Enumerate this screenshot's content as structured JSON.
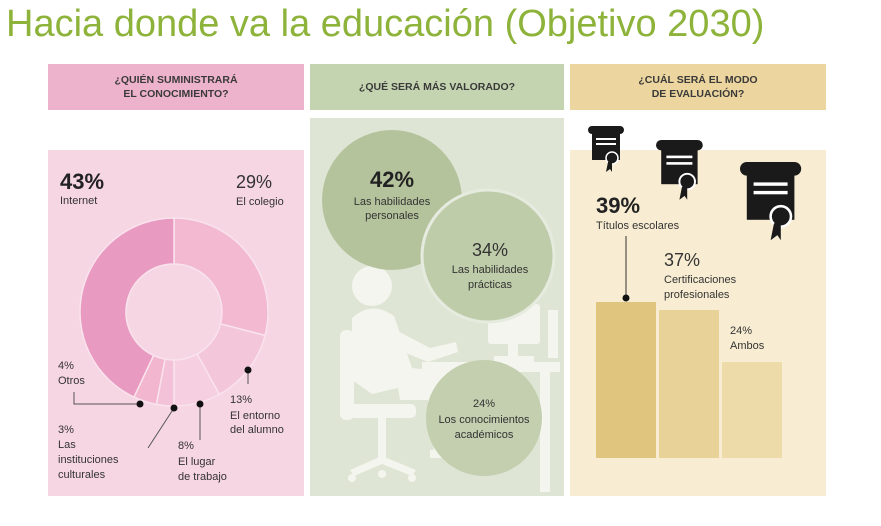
{
  "title": "Hacia donde va la educación (Objetivo 2030)",
  "headers": {
    "h1_line1": "¿QUIÉN SUMINISTRARÁ",
    "h1_line2": "EL CONOCIMIENTO?",
    "h2": "¿QUÉ SERÁ MÁS VALORADO?",
    "h3_line1": "¿CUÁL SERÁ EL MODO",
    "h3_line2": "DE EVALUACIÓN?"
  },
  "colors": {
    "title": "#8db33a",
    "pink_header": "#eeb3cc",
    "green_header": "#c5d4b0",
    "yellow_header": "#ecd59e"
  },
  "chart_data": [
    {
      "type": "pie",
      "title": "¿QUIÉN SUMINISTRARÁ EL CONOCIMIENTO?",
      "slices": [
        {
          "label": "Internet",
          "value": 43,
          "pct": "43%",
          "color": "#e99ac0"
        },
        {
          "label": "El colegio",
          "value": 29,
          "pct": "29%",
          "color": "#f2b9d1"
        },
        {
          "label": "El entorno del alumno",
          "value": 13,
          "pct": "13%",
          "color": "#f4c6da",
          "label_l1": "El entorno",
          "label_l2": "del alumno"
        },
        {
          "label": "El lugar de trabajo",
          "value": 8,
          "pct": "8%",
          "color": "#f6cfe0",
          "label_l1": "El lugar",
          "label_l2": "de trabajo"
        },
        {
          "label": "Las instituciones culturales",
          "value": 3,
          "pct": "3%",
          "color": "#f4c2d8",
          "label_l1": "Las",
          "label_l2": "instituciones",
          "label_l3": "culturales"
        },
        {
          "label": "Otros",
          "value": 4,
          "pct": "4%",
          "color": "#f2b7cf"
        }
      ]
    },
    {
      "type": "bubble",
      "title": "¿QUÉ SERÁ MÁS VALORADO?",
      "items": [
        {
          "pct": "42%",
          "value": 42,
          "label_l1": "Las habilidades",
          "label_l2": "personales"
        },
        {
          "pct": "34%",
          "value": 34,
          "label_l1": "Las habilidades",
          "label_l2": "prácticas"
        },
        {
          "pct": "24%",
          "value": 24,
          "label_l1": "Los conocimientos",
          "label_l2": "académicos"
        }
      ]
    },
    {
      "type": "bar",
      "title": "¿CUÁL SERÁ EL MODO DE EVALUACIÓN?",
      "categories": [
        "Títulos escolares",
        "Certificaciones profesionales",
        "Ambos"
      ],
      "values": [
        39,
        37,
        24
      ],
      "pct": [
        "39%",
        "37%",
        "24%"
      ],
      "label_lines": [
        [
          "Títulos escolares"
        ],
        [
          "Certificaciones",
          "profesionales"
        ],
        [
          "Ambos"
        ]
      ],
      "colors": [
        "#e0c57e",
        "#e8d298",
        "#eddcaa"
      ]
    }
  ]
}
